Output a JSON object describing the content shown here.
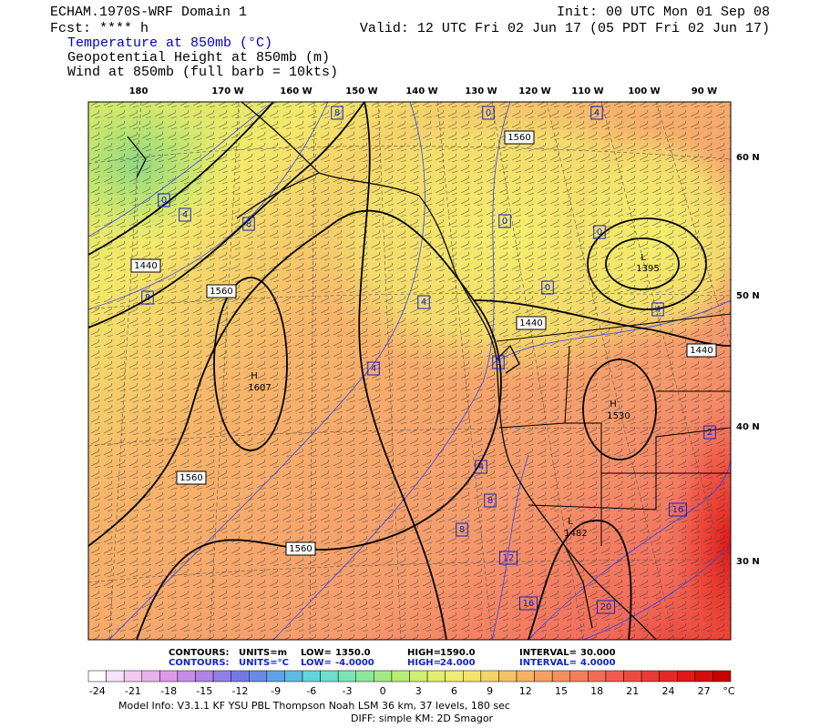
{
  "header": {
    "left": [
      "ECHAM.1970S-WRF Domain 1",
      "Fcst: **** h"
    ],
    "fields": [
      "Temperature at 850mb (°C)",
      "Geopotential Height at 850mb (m)",
      "Wind at 850mb (full barb = 10kts)"
    ],
    "init": "Init: 00 UTC Mon 01 Sep 08",
    "valid": "Valid: 12 UTC Fri 02 Jun 17 (05 PDT Fri 02 Jun 17)"
  },
  "map": {
    "longitudes": [
      "180",
      "170 W",
      "160 W",
      "150 W",
      "140 W",
      "130 W",
      "120 W",
      "110 W",
      "100 W",
      "90 W"
    ],
    "latitudes": [
      "60 N",
      "50 N",
      "40 N",
      "30 N"
    ],
    "labels": [
      "8",
      "0",
      "4",
      "1560",
      "0",
      "4",
      "8",
      "0",
      "0",
      "1440",
      "1560",
      "8",
      "L",
      "1395",
      "0",
      "4",
      "4",
      "1440",
      "1440",
      "0",
      "4",
      "H",
      "1607",
      "H",
      "1530",
      "2",
      "4",
      "1560",
      "8",
      "16",
      "8",
      "L",
      "1482",
      "1560",
      "12",
      "16",
      "20"
    ]
  },
  "footer": {
    "height": [
      "CONTOURS:",
      "UNITS=m",
      "LOW=",
      "1350.0",
      "HIGH=",
      "1590.0",
      "INTERVAL=",
      "30.000"
    ],
    "temperature": [
      "CONTOURS:",
      "UNITS=°C",
      "LOW=",
      "-4.0000",
      "HIGH=",
      "24.000",
      "INTERVAL=",
      "4.0000"
    ],
    "colorbar": [
      "-24",
      "-21",
      "-18",
      "-15",
      "-12",
      "-9",
      "-6",
      "-3",
      "0",
      "3",
      "6",
      "9",
      "12",
      "15",
      "18",
      "21",
      "24",
      "27"
    ],
    "colorbar_unit": "°C",
    "model_info": "Model Info: V3.1.1    KF     YSU PBL   Thompson     Noah LSM   36 km,    37 levels,   180 sec",
    "diff": "DIFF: simple KM: 2D Smagor"
  }
}
